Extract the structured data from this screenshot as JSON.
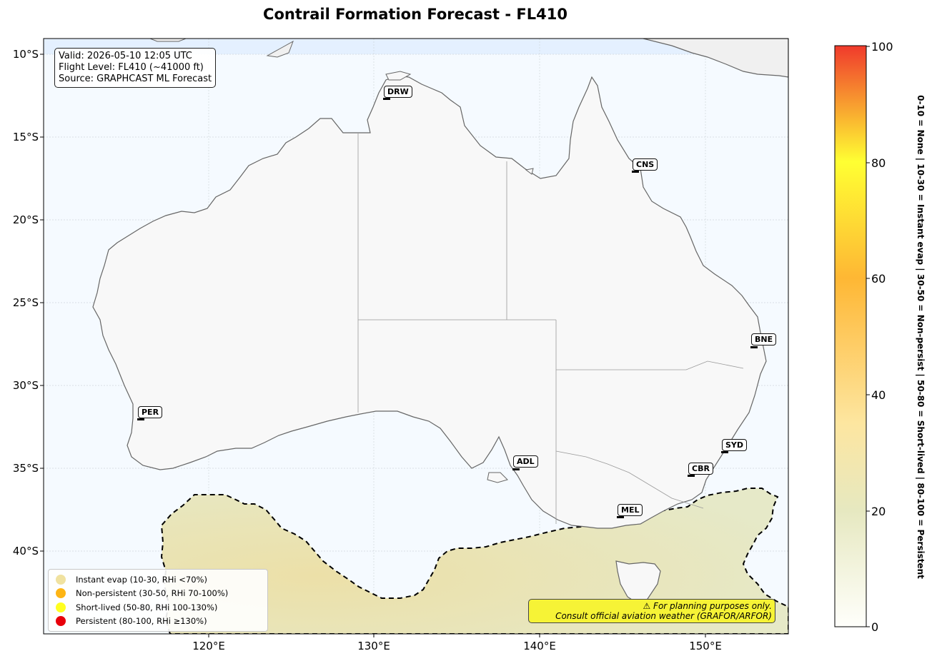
{
  "title": "Contrail Formation Forecast - FL410",
  "info": {
    "valid": "Valid: 2026-05-10 12:05 UTC",
    "flight_level": "Flight Level: FL410 (~41000 ft)",
    "source": "Source: GRAPHCAST ML Forecast"
  },
  "axes": {
    "lat_labels": [
      "10°S",
      "15°S",
      "20°S",
      "25°S",
      "30°S",
      "35°S",
      "40°S"
    ],
    "lon_labels": [
      "120°E",
      "130°E",
      "140°E",
      "150°E"
    ]
  },
  "cities": [
    {
      "code": "DRW"
    },
    {
      "code": "CNS"
    },
    {
      "code": "BNE"
    },
    {
      "code": "PER"
    },
    {
      "code": "SYD"
    },
    {
      "code": "ADL"
    },
    {
      "code": "CBR"
    },
    {
      "code": "MEL"
    }
  ],
  "legend": [
    {
      "label": "Instant evap (10-30, RHi <70%)",
      "color": "#f0e2a0"
    },
    {
      "label": "Non-persistent (30-50, RHi 70-100%)",
      "color": "#fdb515"
    },
    {
      "label": "Short-lived (50-80, RHi 100-130%)",
      "color": "#ffff20"
    },
    {
      "label": "Persistent (80-100, RHi ≥130%)",
      "color": "#e8000b"
    }
  ],
  "warning": {
    "line1": "⚠ For planning purposes only.",
    "line2": "Consult official aviation weather (GRAFOR/ARFOR)"
  },
  "colorbar": {
    "ticks": [
      "100",
      "80",
      "60",
      "40",
      "20",
      "0"
    ],
    "legend_text": "0-10 = None  |  10-30 = Instant evap  |  30-50 = Non-persist  |  50-80 = Short-lived  |  80-100 = Persistent",
    "colors": [
      "#fffffb",
      "#e6e8c0",
      "#fde6a0",
      "#feb734",
      "#ffff33",
      "#f03a2c"
    ]
  }
}
